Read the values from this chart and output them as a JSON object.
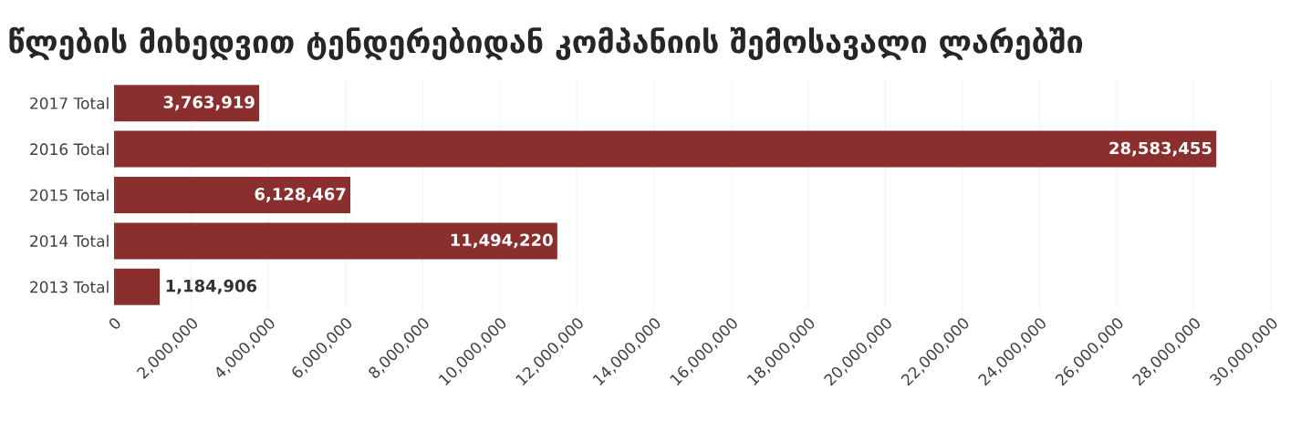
{
  "chart_data": {
    "type": "bar",
    "orientation": "horizontal",
    "title": "წლების მიხედვით ტენდერებიდან კომპანიის შემოსავალი ლარებში",
    "categories": [
      "2017 Total",
      "2016 Total",
      "2015 Total",
      "2014 Total",
      "2013 Total"
    ],
    "values": [
      3763919,
      28583455,
      6128467,
      11494220,
      1184906
    ],
    "value_labels": [
      "3,763,919",
      "28,583,455",
      "6,128,467",
      "11,494,220",
      "1,184,906"
    ],
    "color": "#8b2e2e",
    "xlim": [
      0,
      30000000
    ],
    "xticks": [
      0,
      {
        "value": 2000000,
        "label": "2,000,000"
      },
      {
        "value": 4000000,
        "label": "4,000,000"
      },
      {
        "value": 6000000,
        "label": "6,000,000"
      },
      {
        "value": 8000000,
        "label": "8,000,000"
      },
      {
        "value": 10000000,
        "label": "10,000,000"
      },
      {
        "value": 12000000,
        "label": "12,000,000"
      },
      {
        "value": 14000000,
        "label": "14,000,000"
      },
      {
        "value": 16000000,
        "label": "16,000,000"
      },
      {
        "value": 18000000,
        "label": "18,000,000"
      },
      {
        "value": 20000000,
        "label": "20,000,000"
      },
      {
        "value": 22000000,
        "label": "22,000,000"
      },
      {
        "value": 24000000,
        "label": "24,000,000"
      },
      {
        "value": 26000000,
        "label": "26,000,000"
      },
      {
        "value": 28000000,
        "label": "28,000,000"
      },
      {
        "value": 30000000,
        "label": "30,000,000"
      }
    ],
    "grid": "x"
  }
}
